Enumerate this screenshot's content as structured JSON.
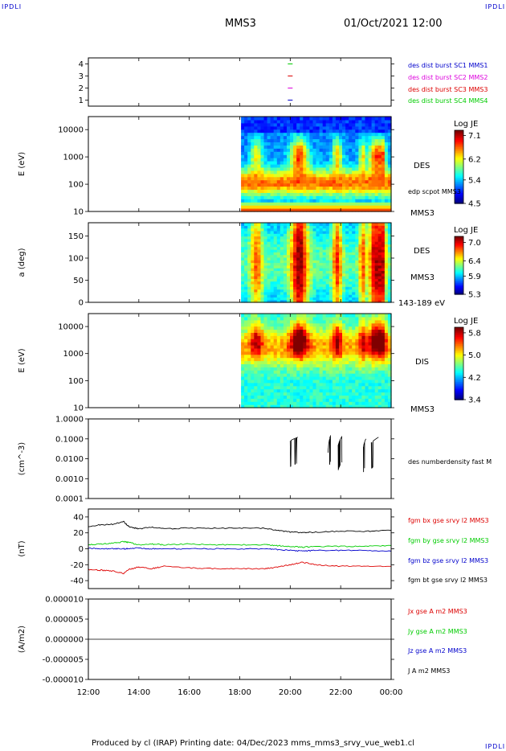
{
  "header": {
    "logo_left": "IPDLI",
    "logo_right": "IPDLI",
    "title": "MMS3",
    "date": "01/Oct/2021 12:00",
    "logo_bottom_right": "IPDLI"
  },
  "footer": {
    "text": "Produced by cl (IRAP)   Printing date: 04/Dec/2023   mms_mms3_srvy_vue_web1.cl"
  },
  "time_axis": {
    "ticks": [
      "12:00",
      "14:00",
      "16:00",
      "18:00",
      "20:00",
      "22:00",
      "00:00"
    ]
  },
  "colors": {
    "black": "#000000",
    "red": "#dd0000",
    "green": "#00cc00",
    "blue": "#0000cc",
    "magenta": "#dd00dd",
    "text_blue": "#0000cc"
  },
  "chart_data": [
    {
      "type": "scatter",
      "id": "burst-mode",
      "ylabel": "",
      "ylim": [
        0.5,
        4.5
      ],
      "yticks": [
        "1",
        "2",
        "3",
        "4"
      ],
      "series": [
        {
          "name": "des dist burst SC1 MMS1",
          "color": "#0000cc",
          "y": 1
        },
        {
          "name": "des dist burst SC2 MMS2",
          "color": "#dd00dd",
          "y": 2
        },
        {
          "name": "des dist burst SC3 MMS3",
          "color": "#dd0000",
          "y": 3
        },
        {
          "name": "des dist burst SC4 MMS4",
          "color": "#00cc00",
          "y": 4
        }
      ],
      "burst_time": "20:00"
    },
    {
      "type": "heatmap",
      "id": "des-energy",
      "ylabel": "E (eV)",
      "yscale": "log",
      "ylim": [
        10,
        30000
      ],
      "yticks": [
        "10",
        "100",
        "1000",
        "10000"
      ],
      "data_start": "18:00",
      "right_labels": [
        "DES",
        "edp scpot MMS3",
        "MMS3"
      ],
      "colorbar": {
        "title": "Log JE",
        "ticks": [
          "7.1",
          "6.2",
          "5.4",
          "4.5"
        ],
        "range": [
          4.5,
          7.3
        ]
      }
    },
    {
      "type": "heatmap",
      "id": "des-pitch",
      "ylabel": "a (deg)",
      "ylim": [
        0,
        180
      ],
      "yticks": [
        "0",
        "50",
        "100",
        "150"
      ],
      "data_start": "18:00",
      "right_labels": [
        "DES",
        "MMS3",
        "143-189 eV"
      ],
      "colorbar": {
        "title": "Log JE",
        "ticks": [
          "7.0",
          "6.4",
          "5.9",
          "5.3"
        ],
        "range": [
          5.3,
          7.2
        ]
      }
    },
    {
      "type": "heatmap",
      "id": "dis-energy",
      "ylabel": "E (eV)",
      "yscale": "log",
      "ylim": [
        10,
        30000
      ],
      "yticks": [
        "10",
        "100",
        "1000",
        "10000"
      ],
      "data_start": "18:00",
      "right_labels": [
        "DIS",
        "MMS3"
      ],
      "colorbar": {
        "title": "Log JE",
        "ticks": [
          "5.8",
          "5.0",
          "4.2",
          "3.4"
        ],
        "range": [
          3.4,
          6.0
        ]
      }
    },
    {
      "type": "line",
      "id": "density",
      "ylabel": "(cm^-3)",
      "yscale": "log",
      "ylim": [
        0.0001,
        1.0
      ],
      "yticks": [
        "0.0001",
        "0.0010",
        "0.0100",
        "0.1000",
        "1.0000"
      ],
      "series": [
        {
          "name": "des numberdensity fast M",
          "color": "#000000",
          "segments": [
            {
              "t": [
                20.0,
                20.3,
                20.6
              ],
              "v": [
                0.08,
                0.12,
                0.1
              ]
            },
            {
              "t": [
                21.5,
                21.6
              ],
              "v": [
                0.02,
                0.15
              ]
            },
            {
              "t": [
                21.9,
                22.05
              ],
              "v": [
                0.05,
                0.13
              ]
            },
            {
              "t": [
                22.9,
                23.0
              ],
              "v": [
                0.04,
                0.1
              ]
            },
            {
              "t": [
                23.2,
                23.5
              ],
              "v": [
                0.06,
                0.12
              ]
            }
          ]
        }
      ]
    },
    {
      "type": "line",
      "id": "fgm",
      "ylabel": "(nT)",
      "ylim": [
        -50,
        50
      ],
      "yticks": [
        "-40",
        "-20",
        "0",
        "20",
        "40"
      ],
      "x": [
        12,
        12.5,
        13,
        13.4,
        13.6,
        14,
        14.5,
        15,
        16,
        17,
        18,
        19,
        19.5,
        20,
        20.5,
        21,
        22,
        23,
        24
      ],
      "series": [
        {
          "name": "fgm bx gse srvy l2 MMS3",
          "color": "#dd0000",
          "values": [
            -26,
            -27,
            -28,
            -31,
            -26,
            -23,
            -25,
            -22,
            -24,
            -25,
            -25,
            -25,
            -23,
            -20,
            -17,
            -20,
            -22,
            -22,
            -22
          ]
        },
        {
          "name": "fgm by gse srvy l2 MMS3",
          "color": "#00cc00",
          "values": [
            5,
            6,
            7,
            9,
            8,
            5,
            6,
            5,
            6,
            5,
            5,
            5,
            4,
            3,
            2,
            3,
            3,
            3,
            4
          ]
        },
        {
          "name": "fgm bz gse srvy l2 MMS3",
          "color": "#0000cc",
          "values": [
            1,
            0,
            0,
            0,
            0,
            1,
            0,
            0,
            0,
            0,
            0,
            0,
            -1,
            -2,
            -3,
            -2,
            -2,
            -2,
            -3
          ]
        },
        {
          "name": "fgm bt gse srvy l2 MMS3",
          "color": "#000000",
          "values": [
            28,
            30,
            31,
            34,
            28,
            25,
            27,
            25,
            26,
            26,
            26,
            26,
            23,
            21,
            20,
            21,
            22,
            22,
            23
          ]
        }
      ]
    },
    {
      "type": "line",
      "id": "current",
      "ylabel": "(A/m2)",
      "ylim": [
        -1e-05,
        1e-05
      ],
      "yticks": [
        "-0.000010",
        "-0.000005",
        "0.000000",
        "0.000005",
        "0.000010"
      ],
      "series": [
        {
          "name": "Jx gse A m2 MMS3",
          "color": "#dd0000"
        },
        {
          "name": "Jy gse A m2 MMS3",
          "color": "#00cc00"
        },
        {
          "name": "Jz gse A m2 MMS3",
          "color": "#0000cc"
        },
        {
          "name": "J A m2 MMS3",
          "color": "#000000"
        }
      ],
      "x": [
        12,
        24
      ],
      "values": [
        0,
        0
      ]
    }
  ]
}
